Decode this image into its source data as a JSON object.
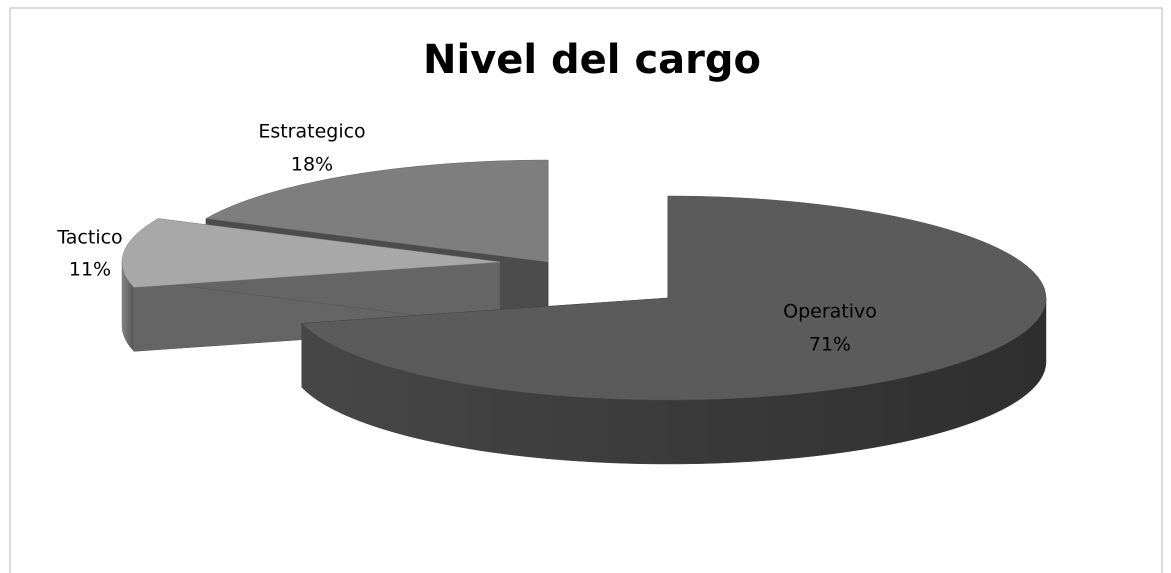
{
  "chart_data": {
    "type": "pie",
    "title": "Nivel del cargo",
    "categories": [
      "Operativo",
      "Tactico",
      "Estrategico"
    ],
    "values": [
      71,
      11,
      18
    ],
    "value_labels": [
      "71%",
      "11%",
      "18%"
    ],
    "colors": [
      "#5b5b5b",
      "#a8a8a8",
      "#7e7e7e"
    ]
  }
}
